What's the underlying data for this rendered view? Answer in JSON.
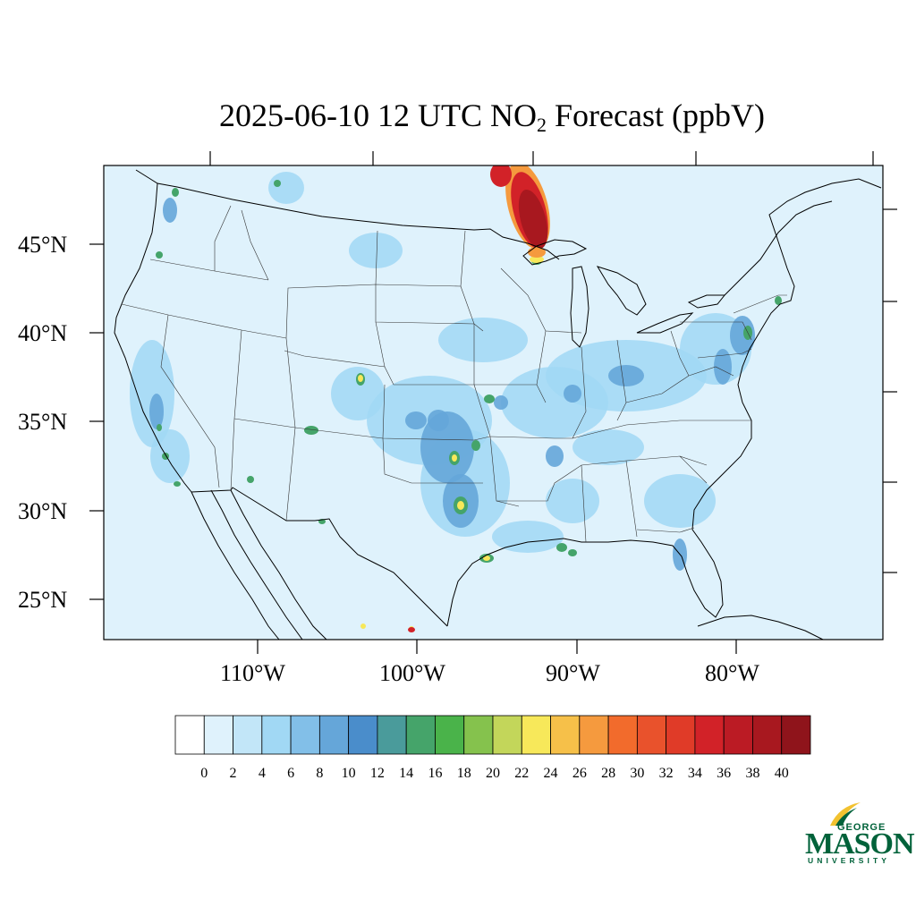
{
  "title": {
    "prefix": "2025-06-10 12 UTC NO",
    "subscript": "2",
    "suffix": " Forecast (ppbV)"
  },
  "lat_labels": [
    "45°N",
    "40°N",
    "35°N",
    "30°N",
    "25°N"
  ],
  "lon_labels": [
    "110°W",
    "100°W",
    "90°W",
    "80°W"
  ],
  "colorbar": {
    "tick_labels": [
      "0",
      "2",
      "4",
      "6",
      "8",
      "10",
      "12",
      "14",
      "16",
      "18",
      "20",
      "22",
      "24",
      "26",
      "28",
      "30",
      "32",
      "34",
      "36",
      "38",
      "40"
    ],
    "colors": [
      "#ffffff",
      "#dff2fc",
      "#c2e6f8",
      "#a1d8f4",
      "#82bfe8",
      "#65a6d9",
      "#4a8dcb",
      "#4a9b9b",
      "#45a46a",
      "#4ab34a",
      "#85c24d",
      "#c3d65a",
      "#f7e85a",
      "#f6c049",
      "#f59a3e",
      "#f26b2c",
      "#e9522c",
      "#e03b28",
      "#d22228",
      "#bb1b24",
      "#a8181f",
      "#8f141b"
    ]
  },
  "map": {
    "background_color": "#dff2fc",
    "hotspot_colors": {
      "light": "#a1d8f4",
      "mid": "#65a6d9",
      "green": "#45a46a",
      "yellow": "#f7e85a",
      "orange": "#f59a3e",
      "red": "#d22228",
      "darkred": "#a8181f"
    }
  },
  "logo": {
    "top": "GEORGE",
    "main": "MASON",
    "bottom": "UNIVERSITY"
  }
}
